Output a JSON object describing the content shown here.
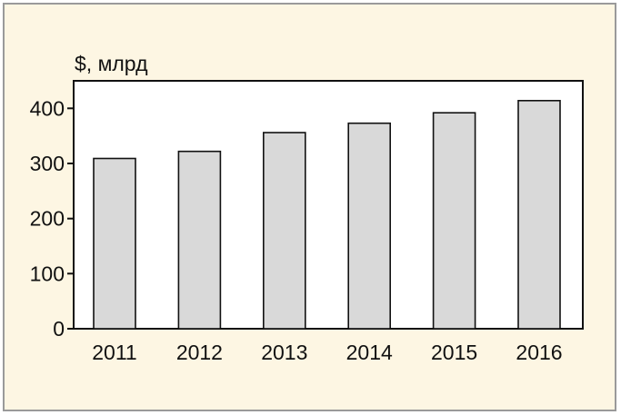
{
  "colors": {
    "background": "#fdf6e3",
    "border": "#9a9a9a",
    "bar_fill": "#d9d9d9",
    "bar_stroke": "#111111",
    "plot_fill": "#ffffff",
    "axis": "#111111"
  },
  "chart_data": {
    "type": "bar",
    "title": "",
    "ylabel": "$, млрд",
    "xlabel": "",
    "categories": [
      "2011",
      "2012",
      "2013",
      "2014",
      "2015",
      "2016"
    ],
    "values": [
      309,
      322,
      356,
      373,
      392,
      414
    ],
    "ylim": [
      0,
      450
    ],
    "yticks": [
      0,
      100,
      200,
      300,
      400
    ],
    "grid": false,
    "legend": "none"
  }
}
